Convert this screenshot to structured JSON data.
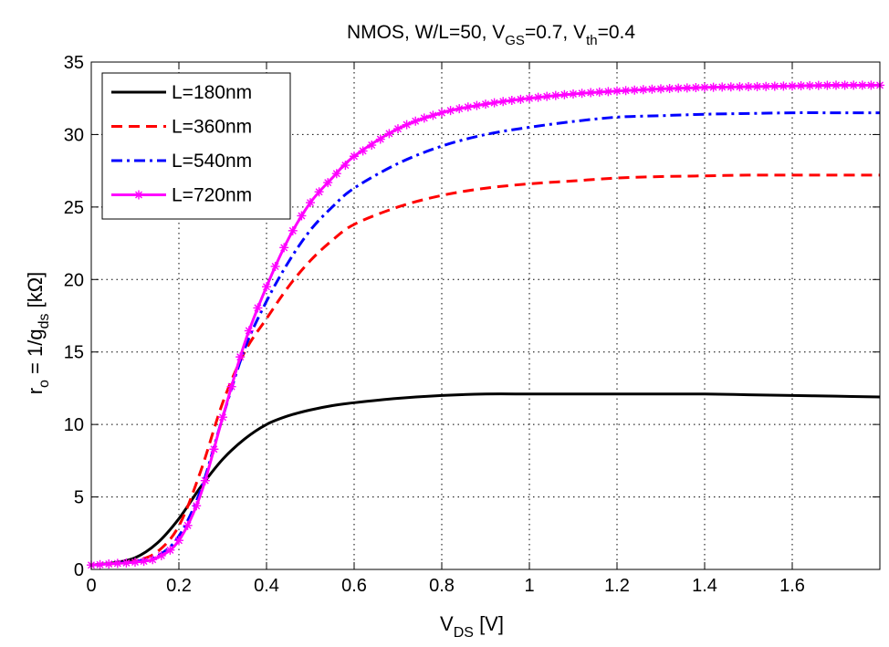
{
  "chart_data": {
    "type": "line",
    "title": {
      "prefix": "NMOS, W/L=50, V",
      "sub1": "GS",
      "mid": "=0.7, V",
      "sub2": "th",
      "suffix": "=0.4"
    },
    "xlabel": {
      "main": "V",
      "sub": "DS",
      "suffix": " [V]"
    },
    "ylabel": {
      "r": "r",
      "rsub": "o",
      "mid": " = 1/g",
      "gsub": "ds",
      "suffix": " [kΩ]"
    },
    "xlim": [
      0,
      1.8
    ],
    "ylim": [
      0,
      35
    ],
    "grid": true,
    "legend_position": "top-left",
    "xticks": [
      0,
      0.2,
      0.4,
      0.6,
      0.8,
      1,
      1.2,
      1.4,
      1.6
    ],
    "xtick_labels": [
      "0",
      "0.2",
      "0.4",
      "0.6",
      "0.8",
      "1",
      "1.2",
      "1.4",
      "1.6"
    ],
    "yticks": [
      0,
      5,
      10,
      15,
      20,
      25,
      30,
      35
    ],
    "ytick_labels": [
      "0",
      "5",
      "10",
      "15",
      "20",
      "25",
      "30",
      "35"
    ],
    "x": [
      0,
      0.05,
      0.1,
      0.15,
      0.2,
      0.25,
      0.3,
      0.35,
      0.4,
      0.45,
      0.5,
      0.55,
      0.6,
      0.7,
      0.8,
      0.9,
      1.0,
      1.1,
      1.2,
      1.3,
      1.4,
      1.5,
      1.6,
      1.7,
      1.8
    ],
    "series": [
      {
        "name": "L=180nm",
        "color": "#000000",
        "style": "solid",
        "marker": false,
        "values": [
          0.3,
          0.45,
          0.8,
          1.8,
          3.5,
          5.7,
          7.6,
          9.0,
          10.0,
          10.6,
          11.0,
          11.3,
          11.5,
          11.8,
          12.0,
          12.1,
          12.1,
          12.1,
          12.1,
          12.1,
          12.1,
          12.05,
          12.0,
          11.95,
          11.9
        ]
      },
      {
        "name": "L=360nm",
        "color": "#ff0000",
        "style": "dashed",
        "marker": false,
        "values": [
          0.3,
          0.4,
          0.6,
          1.2,
          3.0,
          6.8,
          11.5,
          15.0,
          17.3,
          19.5,
          21.3,
          22.7,
          23.8,
          25.0,
          25.8,
          26.3,
          26.6,
          26.8,
          27.0,
          27.1,
          27.15,
          27.2,
          27.2,
          27.2,
          27.2
        ]
      },
      {
        "name": "L=540nm",
        "color": "#0000ff",
        "style": "dashdot",
        "marker": false,
        "values": [
          0.3,
          0.4,
          0.55,
          0.9,
          2.3,
          5.5,
          10.5,
          15.2,
          18.5,
          21.2,
          23.4,
          25.0,
          26.3,
          28.0,
          29.2,
          30.0,
          30.5,
          30.9,
          31.2,
          31.3,
          31.4,
          31.45,
          31.5,
          31.5,
          31.5
        ]
      },
      {
        "name": "L=720nm",
        "color": "#ff00ff",
        "style": "solid",
        "marker": true,
        "values": [
          0.3,
          0.4,
          0.5,
          0.8,
          2.0,
          5.2,
          10.5,
          15.6,
          19.5,
          22.8,
          25.3,
          27.0,
          28.5,
          30.4,
          31.5,
          32.1,
          32.5,
          32.8,
          33.0,
          33.15,
          33.25,
          33.3,
          33.35,
          33.4,
          33.4
        ]
      }
    ]
  }
}
